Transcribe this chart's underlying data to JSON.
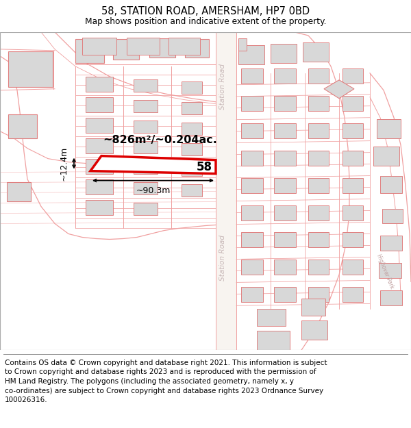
{
  "title": "58, STATION ROAD, AMERSHAM, HP7 0BD",
  "subtitle": "Map shows position and indicative extent of the property.",
  "footer": "Contains OS data © Crown copyright and database right 2021. This information is subject\nto Crown copyright and database rights 2023 and is reproduced with the permission of\nHM Land Registry. The polygons (including the associated geometry, namely x, y\nco-ordinates) are subject to Crown copyright and database rights 2023 Ordnance Survey\n100026316.",
  "title_fontsize": 10.5,
  "subtitle_fontsize": 8.8,
  "footer_fontsize": 7.5,
  "map_bg": "#ffffff",
  "road_line_color": "#f0a0a0",
  "building_fill": "#d8d8d8",
  "building_edge": "#e08080",
  "road_label_color": "#c8b8b8",
  "plot_color": "#dd0000",
  "plot_lw": 2.5,
  "area_label": "~826m²/~0.204ac.",
  "width_label": "~90.3m",
  "height_label": "~12.4m",
  "plot_number": "58"
}
